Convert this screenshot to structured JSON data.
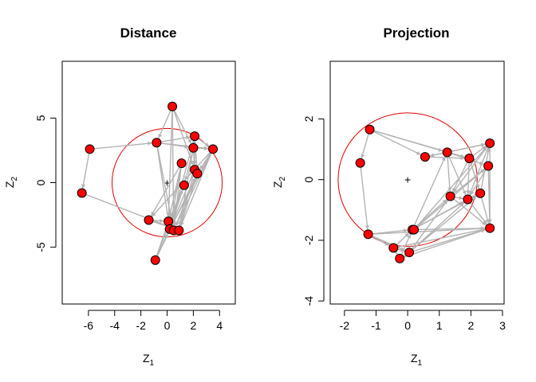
{
  "chart_data": [
    {
      "type": "scatter",
      "title": "Distance",
      "xlabel": "Z",
      "xlabel_sub": "1",
      "ylabel": "Z",
      "ylabel_sub": "2",
      "xlim": [
        -8,
        5.2
      ],
      "ylim": [
        -9.4,
        9.4
      ],
      "xticks": [
        -6,
        -4,
        -2,
        0,
        2,
        4
      ],
      "yticks": [
        -5,
        0,
        5
      ],
      "center_marker": "+",
      "center": [
        0,
        0
      ],
      "circle": {
        "cx": 0,
        "cy": 0,
        "r": 4.2,
        "color": "#e00000"
      },
      "edge_color": "#b3b3b3",
      "point_fill": "#ff0000",
      "points": [
        [
          0.4,
          5.9
        ],
        [
          2.1,
          3.6
        ],
        [
          -0.8,
          3.1
        ],
        [
          2.0,
          2.7
        ],
        [
          3.5,
          2.6
        ],
        [
          -5.9,
          2.6
        ],
        [
          1.1,
          1.5
        ],
        [
          2.1,
          1.0
        ],
        [
          2.3,
          0.7
        ],
        [
          1.3,
          -0.2
        ],
        [
          -6.5,
          -0.8
        ],
        [
          -1.4,
          -2.9
        ],
        [
          0.1,
          -3.0
        ],
        [
          0.2,
          -3.6
        ],
        [
          0.5,
          -3.7
        ],
        [
          0.9,
          -3.7
        ],
        [
          -0.9,
          -6.0
        ]
      ],
      "edges": [
        [
          5,
          2
        ],
        [
          5,
          10
        ],
        [
          10,
          15
        ],
        [
          2,
          4
        ],
        [
          2,
          1
        ],
        [
          2,
          3
        ],
        [
          2,
          13
        ],
        [
          2,
          14
        ],
        [
          0,
          2
        ],
        [
          0,
          3
        ],
        [
          0,
          14
        ],
        [
          0,
          12
        ],
        [
          0,
          7
        ],
        [
          1,
          3
        ],
        [
          1,
          7
        ],
        [
          1,
          8
        ],
        [
          1,
          4
        ],
        [
          3,
          4
        ],
        [
          3,
          7
        ],
        [
          4,
          8
        ],
        [
          4,
          13
        ],
        [
          4,
          14
        ],
        [
          4,
          15
        ],
        [
          4,
          11
        ],
        [
          3,
          9
        ],
        [
          6,
          13
        ],
        [
          6,
          12
        ],
        [
          6,
          14
        ],
        [
          7,
          15
        ],
        [
          8,
          15
        ],
        [
          9,
          12
        ],
        [
          9,
          13
        ],
        [
          8,
          14
        ],
        [
          11,
          15
        ],
        [
          11,
          12
        ],
        [
          16,
          12
        ],
        [
          16,
          13
        ],
        [
          16,
          8
        ],
        [
          16,
          9
        ],
        [
          7,
          13
        ],
        [
          3,
          15
        ],
        [
          6,
          11
        ],
        [
          1,
          13
        ]
      ]
    },
    {
      "type": "scatter",
      "title": "Projection",
      "xlabel": "Z",
      "xlabel_sub": "1",
      "ylabel": "Z",
      "ylabel_sub": "2",
      "xlim": [
        -2.45,
        3.05
      ],
      "ylim": [
        -4.1,
        3.9
      ],
      "xticks": [
        -2,
        -1,
        0,
        1,
        2,
        3
      ],
      "yticks": [
        -4,
        -2,
        0,
        2
      ],
      "center_marker": "+",
      "center": [
        0,
        0
      ],
      "circle": {
        "cx": 0,
        "cy": 0,
        "r": 2.2,
        "color": "#e00000"
      },
      "edge_color": "#b3b3b3",
      "point_fill": "#ff0000",
      "points": [
        [
          -1.2,
          1.65
        ],
        [
          -1.5,
          0.55
        ],
        [
          2.6,
          1.2
        ],
        [
          1.25,
          0.9
        ],
        [
          0.55,
          0.75
        ],
        [
          1.95,
          0.7
        ],
        [
          2.55,
          0.45
        ],
        [
          1.35,
          -0.55
        ],
        [
          2.3,
          -0.45
        ],
        [
          1.9,
          -0.65
        ],
        [
          2.6,
          -1.6
        ],
        [
          -1.25,
          -1.8
        ],
        [
          0.15,
          -1.65
        ],
        [
          0.2,
          -1.65
        ],
        [
          -0.45,
          -2.25
        ],
        [
          0.05,
          -2.4
        ],
        [
          -0.25,
          -2.6
        ]
      ],
      "edges": [
        [
          0,
          1
        ],
        [
          0,
          4
        ],
        [
          0,
          5
        ],
        [
          0,
          3
        ],
        [
          1,
          11
        ],
        [
          11,
          10
        ],
        [
          11,
          12
        ],
        [
          11,
          14
        ],
        [
          11,
          15
        ],
        [
          14,
          16
        ],
        [
          14,
          12
        ],
        [
          14,
          10
        ],
        [
          16,
          12
        ],
        [
          16,
          10
        ],
        [
          15,
          10
        ],
        [
          15,
          9
        ],
        [
          15,
          8
        ],
        [
          15,
          7
        ],
        [
          12,
          7
        ],
        [
          12,
          9
        ],
        [
          12,
          8
        ],
        [
          12,
          3
        ],
        [
          13,
          6
        ],
        [
          13,
          2
        ],
        [
          3,
          4
        ],
        [
          3,
          2
        ],
        [
          3,
          5
        ],
        [
          3,
          6
        ],
        [
          3,
          7
        ],
        [
          3,
          9
        ],
        [
          4,
          5
        ],
        [
          4,
          2
        ],
        [
          5,
          2
        ],
        [
          5,
          7
        ],
        [
          5,
          8
        ],
        [
          5,
          9
        ],
        [
          6,
          9
        ],
        [
          6,
          10
        ],
        [
          2,
          7
        ],
        [
          2,
          9
        ],
        [
          2,
          10
        ],
        [
          7,
          9
        ],
        [
          7,
          10
        ],
        [
          8,
          10
        ],
        [
          9,
          10
        ],
        [
          8,
          2
        ],
        [
          12,
          10
        ],
        [
          16,
          15
        ],
        [
          14,
          15
        ],
        [
          7,
          6
        ]
      ]
    }
  ]
}
